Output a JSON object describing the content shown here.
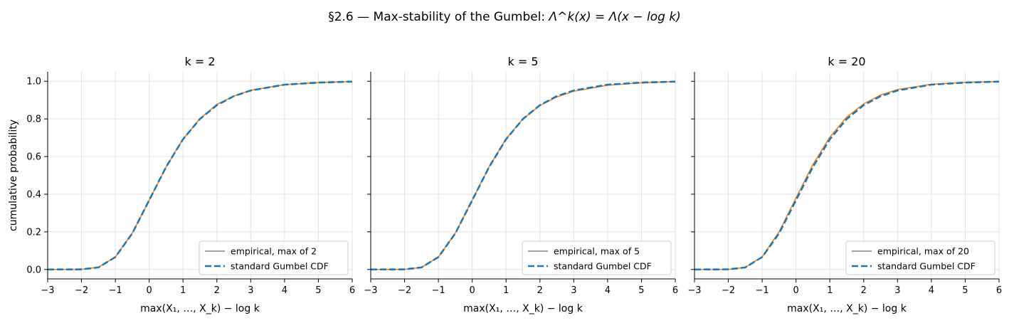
{
  "figure": {
    "suptitle_prefix": "§2.6 — Max-stability of the Gumbel: ",
    "suptitle_math": "Λ^k(x) = Λ(x − log k)"
  },
  "chart_data": [
    {
      "type": "line",
      "title": "k = 2",
      "xlabel": "max(X₁, …, X_k) − log k",
      "ylabel": "cumulative probability",
      "xlim": [
        -3,
        6
      ],
      "ylim": [
        -0.05,
        1.05
      ],
      "xticks": [
        -3,
        -2,
        -1,
        0,
        1,
        2,
        3,
        4,
        5,
        6
      ],
      "yticks": [
        0.0,
        0.2,
        0.4,
        0.6,
        0.8,
        1.0
      ],
      "grid": true,
      "legend": "lower-right",
      "series": [
        {
          "name": "empirical, max of 2",
          "style": "solid",
          "color": "#ff7f0e",
          "x": [
            -3,
            -2,
            -1.5,
            -1,
            -0.5,
            0,
            0.5,
            1,
            1.5,
            2,
            2.5,
            3,
            4,
            5,
            6
          ],
          "y": [
            0.0,
            0.0006,
            0.012,
            0.066,
            0.194,
            0.368,
            0.545,
            0.693,
            0.801,
            0.877,
            0.921,
            0.952,
            0.982,
            0.993,
            0.998
          ]
        },
        {
          "name": "standard Gumbel CDF",
          "style": "dashed",
          "color": "#1f77b4",
          "x": [
            -3,
            -2,
            -1.5,
            -1,
            -0.5,
            0,
            0.5,
            1,
            1.5,
            2,
            2.5,
            3,
            4,
            5,
            6
          ],
          "y": [
            0.0,
            0.0006,
            0.011,
            0.066,
            0.192,
            0.368,
            0.545,
            0.692,
            0.8,
            0.873,
            0.921,
            0.951,
            0.982,
            0.993,
            0.998
          ]
        }
      ]
    },
    {
      "type": "line",
      "title": "k = 5",
      "xlabel": "max(X₁, …, X_k) − log k",
      "ylabel": "",
      "xlim": [
        -3,
        6
      ],
      "ylim": [
        -0.05,
        1.05
      ],
      "xticks": [
        -3,
        -2,
        -1,
        0,
        1,
        2,
        3,
        4,
        5,
        6
      ],
      "yticks": [
        0.0,
        0.2,
        0.4,
        0.6,
        0.8,
        1.0
      ],
      "grid": true,
      "legend": "lower-right",
      "series": [
        {
          "name": "empirical, max of 5",
          "style": "solid",
          "color": "#ff7f0e",
          "x": [
            -3,
            -2,
            -1.5,
            -1,
            -0.5,
            0,
            0.5,
            1,
            1.5,
            2,
            2.5,
            3,
            4,
            5,
            6
          ],
          "y": [
            0.0,
            0.0006,
            0.011,
            0.066,
            0.193,
            0.369,
            0.546,
            0.694,
            0.801,
            0.871,
            0.917,
            0.947,
            0.979,
            0.992,
            0.998
          ]
        },
        {
          "name": "standard Gumbel CDF",
          "style": "dashed",
          "color": "#1f77b4",
          "x": [
            -3,
            -2,
            -1.5,
            -1,
            -0.5,
            0,
            0.5,
            1,
            1.5,
            2,
            2.5,
            3,
            4,
            5,
            6
          ],
          "y": [
            0.0,
            0.0006,
            0.011,
            0.066,
            0.192,
            0.368,
            0.545,
            0.692,
            0.8,
            0.873,
            0.921,
            0.951,
            0.982,
            0.993,
            0.998
          ]
        }
      ]
    },
    {
      "type": "line",
      "title": "k = 20",
      "xlabel": "max(X₁, …, X_k) − log k",
      "ylabel": "",
      "xlim": [
        -3,
        6
      ],
      "ylim": [
        -0.05,
        1.05
      ],
      "xticks": [
        -3,
        -2,
        -1,
        0,
        1,
        2,
        3,
        4,
        5,
        6
      ],
      "yticks": [
        0.0,
        0.2,
        0.4,
        0.6,
        0.8,
        1.0
      ],
      "grid": true,
      "legend": "lower-right",
      "series": [
        {
          "name": "empirical, max of 20",
          "style": "solid",
          "color": "#ff7f0e",
          "x": [
            -3,
            -2,
            -1.5,
            -1,
            -0.5,
            0,
            0.5,
            1,
            1.5,
            2,
            2.5,
            3,
            4,
            5,
            6
          ],
          "y": [
            0.0,
            0.0006,
            0.011,
            0.068,
            0.2,
            0.38,
            0.558,
            0.703,
            0.81,
            0.88,
            0.927,
            0.956,
            0.984,
            0.994,
            0.998
          ]
        },
        {
          "name": "standard Gumbel CDF",
          "style": "dashed",
          "color": "#1f77b4",
          "x": [
            -3,
            -2,
            -1.5,
            -1,
            -0.5,
            0,
            0.5,
            1,
            1.5,
            2,
            2.5,
            3,
            4,
            5,
            6
          ],
          "y": [
            0.0,
            0.0006,
            0.011,
            0.066,
            0.192,
            0.368,
            0.545,
            0.692,
            0.8,
            0.873,
            0.921,
            0.951,
            0.982,
            0.993,
            0.998
          ]
        }
      ]
    }
  ]
}
